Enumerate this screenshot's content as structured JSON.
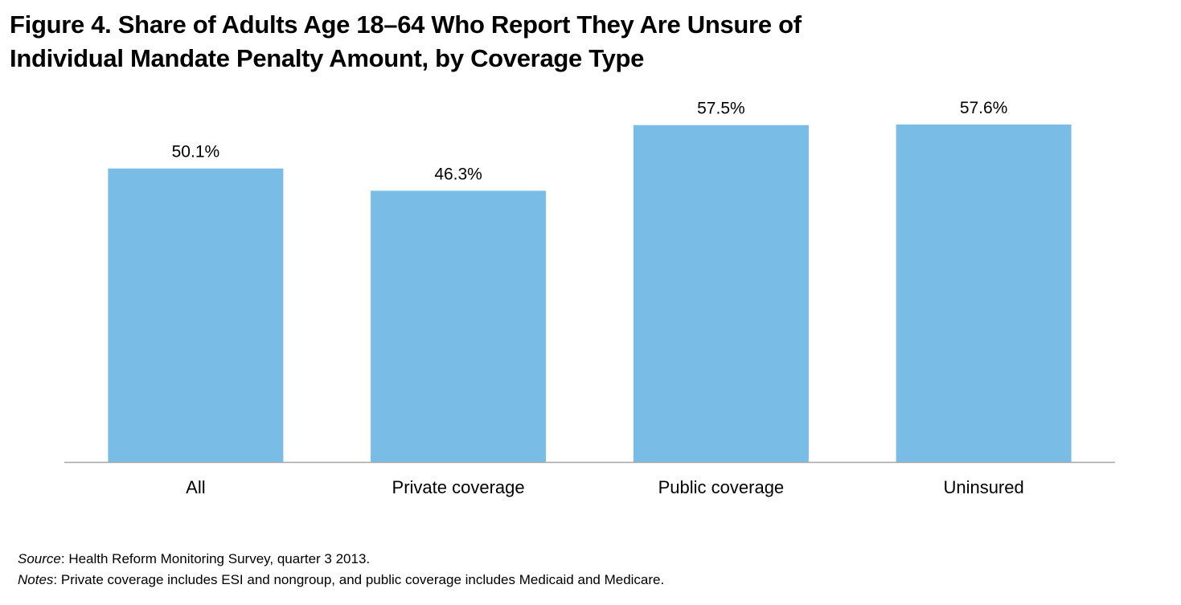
{
  "chart_data": {
    "type": "bar",
    "title_lines": [
      "Figure 4. Share of Adults Age 18–64 Who Report They Are Unsure of",
      "Individual Mandate Penalty Amount, by Coverage Type"
    ],
    "categories": [
      "All",
      "Private coverage",
      "Public coverage",
      "Uninsured"
    ],
    "values": [
      50.1,
      46.3,
      57.5,
      57.6
    ],
    "data_labels": [
      "50.1%",
      "46.3%",
      "57.5%",
      "57.6%"
    ],
    "ylim": [
      0,
      57.6
    ],
    "grid": false,
    "legend": "none",
    "bar_color": "#79bce6",
    "axis_color": "#a6a6a6"
  },
  "footnotes": {
    "source_lead": "Source",
    "source_text": ": Health Reform Monitoring Survey, quarter 3 2013.",
    "notes_lead": "Notes",
    "notes_text": ": Private coverage includes ESI and nongroup, and public coverage includes Medicaid and Medicare."
  }
}
